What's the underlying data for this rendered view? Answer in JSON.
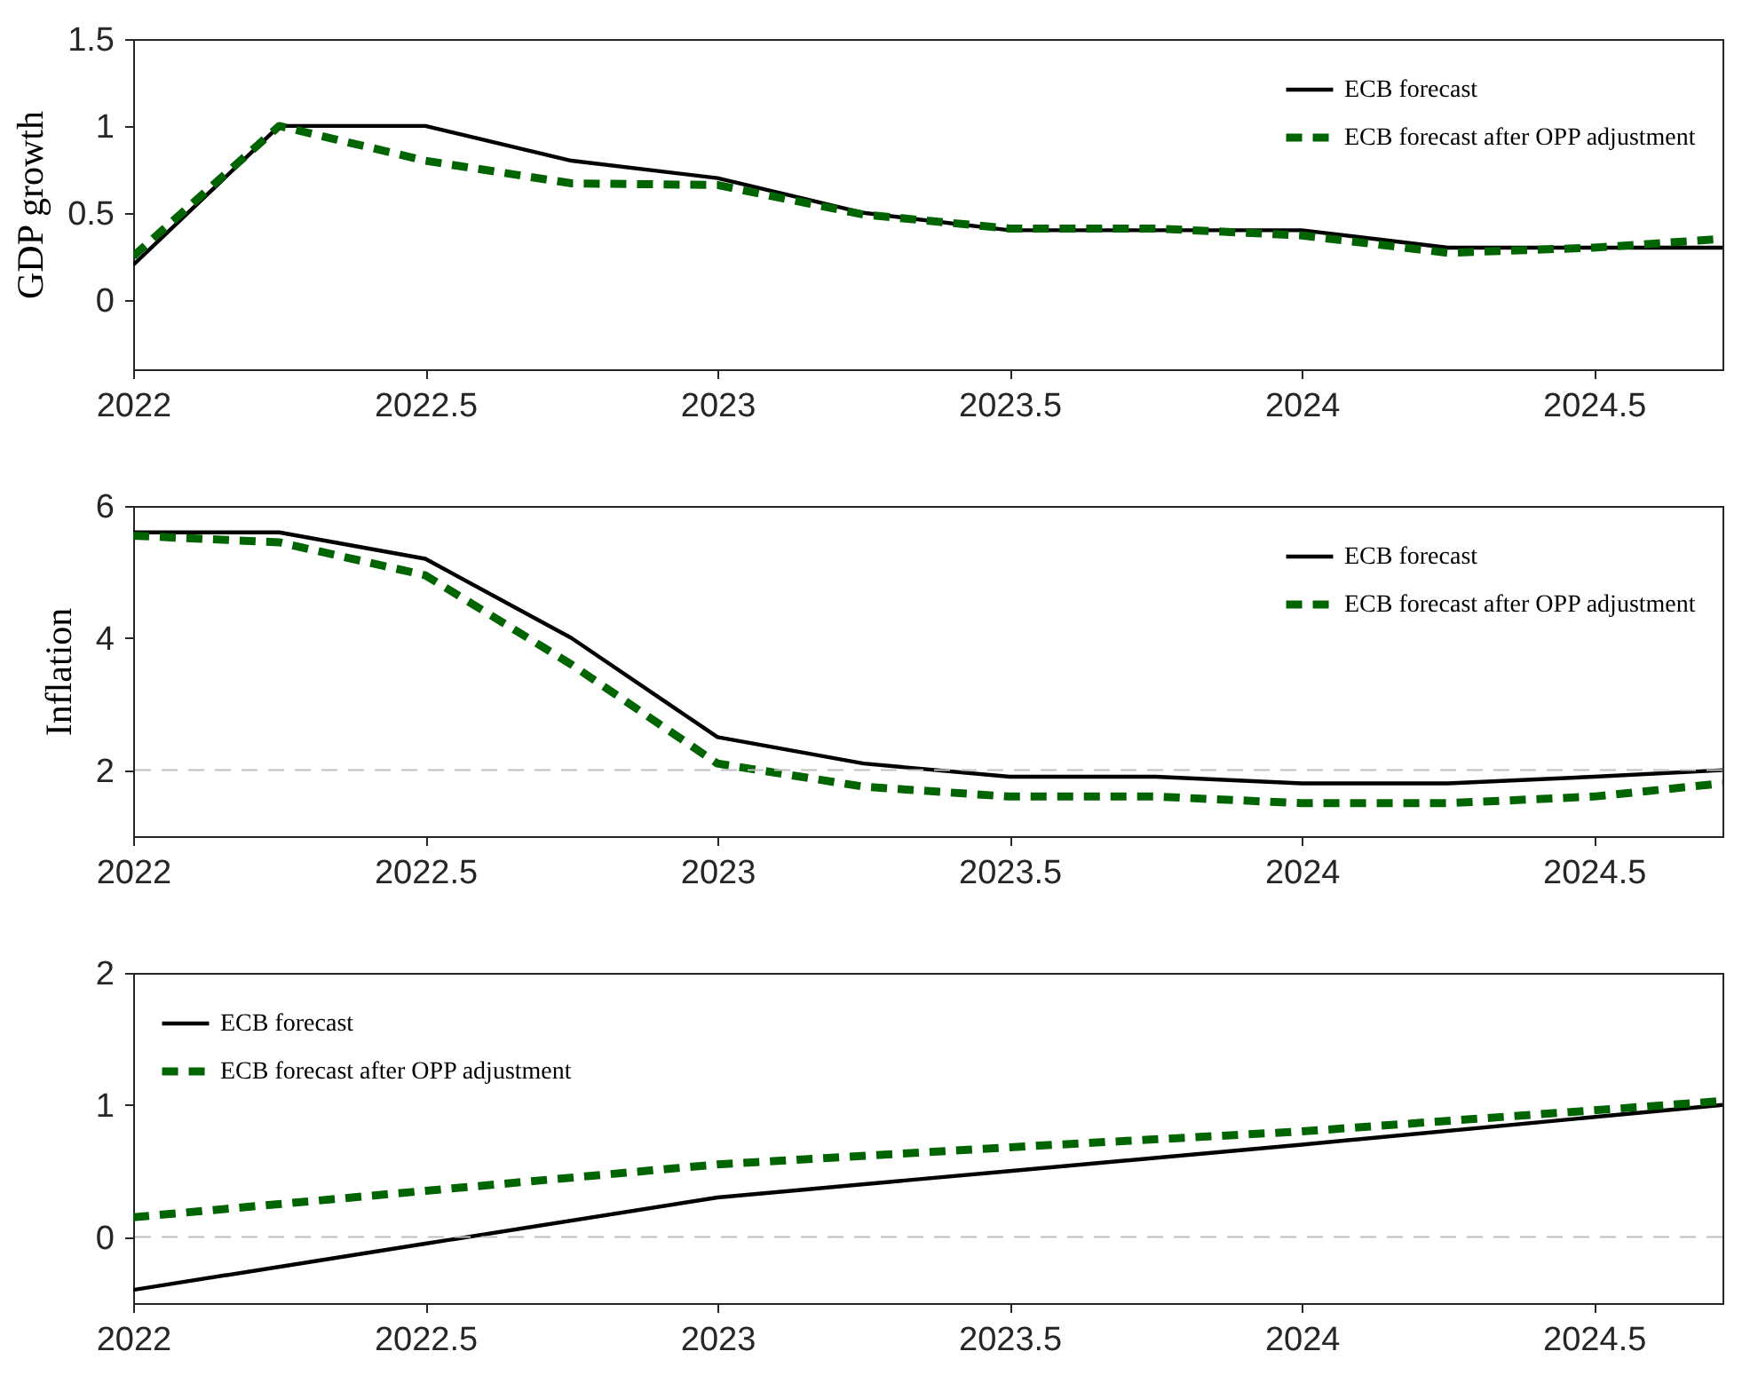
{
  "chart_data": [
    {
      "type": "line",
      "ylabel": "GDP growth",
      "x": [
        2022,
        2022.25,
        2022.5,
        2022.75,
        2023,
        2023.25,
        2023.5,
        2023.75,
        2024,
        2024.25,
        2024.5,
        2024.72
      ],
      "xlim": [
        2022,
        2024.72
      ],
      "xticks": [
        2022,
        2022.5,
        2023,
        2023.5,
        2024,
        2024.5
      ],
      "ylim": [
        -0.4,
        1.5
      ],
      "yticks": [
        0,
        0.5,
        1,
        1.5
      ],
      "legend": "top right",
      "series": [
        {
          "name": "ECB forecast",
          "color": "#000000",
          "line_style": "solid",
          "values": [
            0.2,
            1.0,
            1.0,
            0.8,
            0.7,
            0.5,
            0.4,
            0.4,
            0.4,
            0.3,
            0.3,
            0.3
          ]
        },
        {
          "name": "ECB forecast after OPP adjustment",
          "color": "#006400",
          "line_style": "dashed",
          "values": [
            0.25,
            1.0,
            0.8,
            0.67,
            0.66,
            0.49,
            0.41,
            0.41,
            0.37,
            0.27,
            0.3,
            0.35
          ]
        }
      ]
    },
    {
      "type": "line",
      "ylabel": "Inflation",
      "x": [
        2022,
        2022.25,
        2022.5,
        2022.75,
        2023,
        2023.25,
        2023.5,
        2023.75,
        2024,
        2024.25,
        2024.5,
        2024.72
      ],
      "xlim": [
        2022,
        2024.72
      ],
      "xticks": [
        2022,
        2022.5,
        2023,
        2023.5,
        2024,
        2024.5
      ],
      "ylim": [
        1,
        6
      ],
      "yticks": [
        2,
        4,
        6
      ],
      "legend": "top right",
      "ref_lines": [
        {
          "axis": "y",
          "value": 2,
          "color": "#bfbfbf",
          "line_style": "dashed"
        }
      ],
      "series": [
        {
          "name": "ECB forecast",
          "color": "#000000",
          "line_style": "solid",
          "values": [
            5.6,
            5.6,
            5.2,
            4.0,
            2.5,
            2.1,
            1.9,
            1.9,
            1.8,
            1.8,
            1.9,
            2.0
          ]
        },
        {
          "name": "ECB forecast after OPP adjustment",
          "color": "#006400",
          "line_style": "dashed",
          "values": [
            5.55,
            5.45,
            4.95,
            3.6,
            2.1,
            1.75,
            1.6,
            1.6,
            1.5,
            1.5,
            1.6,
            1.8
          ]
        }
      ]
    },
    {
      "type": "line",
      "x": [
        2022,
        2022.5,
        2023,
        2023.5,
        2024,
        2024.72
      ],
      "xlim": [
        2022,
        2024.72
      ],
      "xticks": [
        2022,
        2022.5,
        2023,
        2023.5,
        2024,
        2024.5
      ],
      "ylim": [
        -0.5,
        2
      ],
      "yticks": [
        0,
        1,
        2
      ],
      "legend": "top left",
      "ref_lines": [
        {
          "axis": "y",
          "value": 0,
          "color": "#bfbfbf",
          "line_style": "dashed"
        }
      ],
      "series": [
        {
          "name": "ECB forecast",
          "color": "#000000",
          "line_style": "solid",
          "values": [
            -0.4,
            -0.05,
            0.3,
            0.5,
            0.7,
            1.0
          ]
        },
        {
          "name": "ECB forecast after OPP adjustment",
          "color": "#006400",
          "line_style": "dashed",
          "values": [
            0.15,
            0.35,
            0.55,
            0.68,
            0.8,
            1.03
          ]
        }
      ]
    }
  ]
}
